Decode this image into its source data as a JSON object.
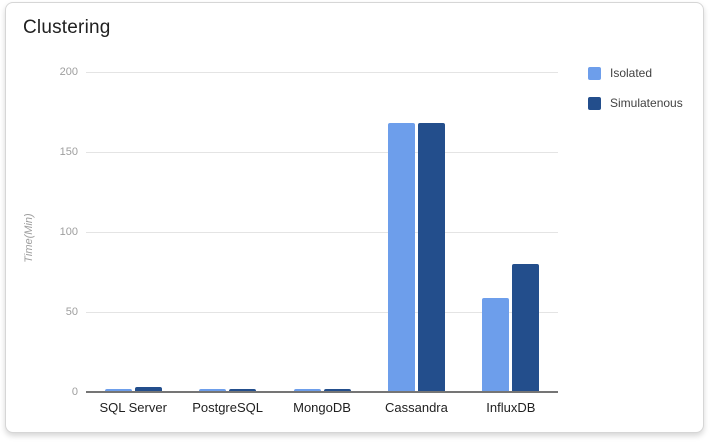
{
  "chart_data": {
    "type": "bar",
    "title": "Clustering",
    "ylabel": "Time(Min)",
    "xlabel": "",
    "categories": [
      "SQL Server",
      "PostgreSQL",
      "MongoDB",
      "Cassandra",
      "InfluxDB"
    ],
    "series": [
      {
        "name": "Isolated",
        "color": "#6d9eeb",
        "values": [
          2,
          2,
          2,
          168,
          59
        ]
      },
      {
        "name": "Simulatenous",
        "color": "#234e8c",
        "values": [
          3,
          2,
          2,
          168,
          80
        ]
      }
    ],
    "yticks": [
      0,
      50,
      100,
      150,
      200
    ],
    "ylim": [
      0,
      200
    ],
    "grid": true,
    "legend_position": "top-right"
  }
}
